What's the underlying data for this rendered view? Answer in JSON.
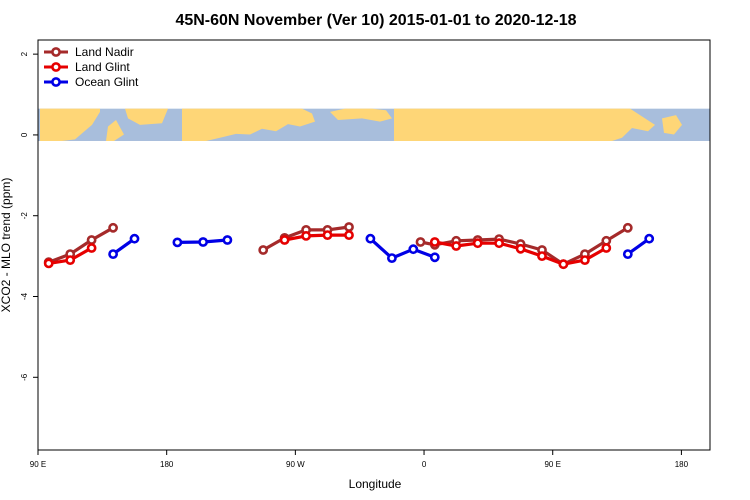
{
  "colors": {
    "land_nadir": "#a52a2a",
    "land_glint": "#e60000",
    "ocean_glint": "#0000e6",
    "ocean_band": "#a8bedc",
    "land_band": "#fed677",
    "background": "#ffffff"
  },
  "chart_data": {
    "type": "line",
    "title": "45N-60N November (Ver 10)   2015-01-01 to 2020-12-18",
    "xlabel": "Longitude",
    "ylabel": "XCO2 - MLO trend (ppm)",
    "xlim": [
      90,
      560
    ],
    "ylim": [
      -7.8,
      2.35
    ],
    "x_ticks": [
      {
        "value": 90,
        "label": "90 E"
      },
      {
        "value": 180,
        "label": "180"
      },
      {
        "value": 270,
        "label": "90 W"
      },
      {
        "value": 360,
        "label": "0"
      },
      {
        "value": 450,
        "label": "90 E"
      },
      {
        "value": 540,
        "label": "180"
      }
    ],
    "y_ticks": [
      {
        "value": 2,
        "label": "2"
      },
      {
        "value": 0,
        "label": "0"
      },
      {
        "value": -2,
        "label": "-2"
      },
      {
        "value": -4,
        "label": "-4"
      },
      {
        "value": -6,
        "label": "-6"
      }
    ],
    "legend": {
      "position": "top-left",
      "entries": [
        {
          "name": "Land Nadir",
          "color": "#a52a2a"
        },
        {
          "name": "Land Glint",
          "color": "#e60000"
        },
        {
          "name": "Ocean Glint",
          "color": "#0000e6"
        }
      ]
    },
    "map_strip": {
      "description": "world map strip spanning longitude range",
      "y_range": [
        -0.15,
        0.65
      ]
    },
    "series": [
      {
        "name": "Land Nadir",
        "color": "#a52a2a",
        "segments": [
          [
            [
              97.5,
              -3.15
            ],
            [
              112.5,
              -2.95
            ],
            [
              127.5,
              -2.6
            ],
            [
              142.5,
              -2.3
            ]
          ],
          [
            [
              247.5,
              -2.85
            ],
            [
              262.5,
              -2.55
            ],
            [
              277.5,
              -2.35
            ],
            [
              292.5,
              -2.35
            ],
            [
              307.5,
              -2.28
            ]
          ],
          [
            [
              357.5,
              -2.65
            ],
            [
              367.5,
              -2.72
            ],
            [
              382.5,
              -2.62
            ],
            [
              397.5,
              -2.6
            ],
            [
              412.5,
              -2.58
            ],
            [
              427.5,
              -2.7
            ],
            [
              442.5,
              -2.85
            ],
            [
              457.5,
              -3.2
            ],
            [
              472.5,
              -2.95
            ],
            [
              487.5,
              -2.62
            ],
            [
              502.5,
              -2.3
            ]
          ]
        ]
      },
      {
        "name": "Land Glint",
        "color": "#e60000",
        "segments": [
          [
            [
              97.5,
              -3.18
            ],
            [
              112.5,
              -3.1
            ],
            [
              127.5,
              -2.8
            ]
          ],
          [
            [
              262.5,
              -2.6
            ],
            [
              277.5,
              -2.5
            ],
            [
              292.5,
              -2.48
            ],
            [
              307.5,
              -2.48
            ]
          ],
          [
            [
              367.5,
              -2.65
            ],
            [
              382.5,
              -2.75
            ],
            [
              397.5,
              -2.68
            ],
            [
              412.5,
              -2.68
            ],
            [
              427.5,
              -2.82
            ],
            [
              442.5,
              -3.0
            ],
            [
              457.5,
              -3.2
            ],
            [
              472.5,
              -3.1
            ],
            [
              487.5,
              -2.8
            ]
          ]
        ]
      },
      {
        "name": "Ocean Glint",
        "color": "#0000e6",
        "segments": [
          [
            [
              142.5,
              -2.95
            ],
            [
              157.5,
              -2.57
            ]
          ],
          [
            [
              187.5,
              -2.66
            ],
            [
              205.5,
              -2.65
            ],
            [
              222.5,
              -2.6
            ]
          ],
          [
            [
              322.5,
              -2.57
            ],
            [
              337.5,
              -3.05
            ],
            [
              352.5,
              -2.83
            ],
            [
              367.5,
              -3.03
            ]
          ],
          [
            [
              502.5,
              -2.95
            ],
            [
              517.5,
              -2.57
            ]
          ]
        ]
      }
    ]
  }
}
